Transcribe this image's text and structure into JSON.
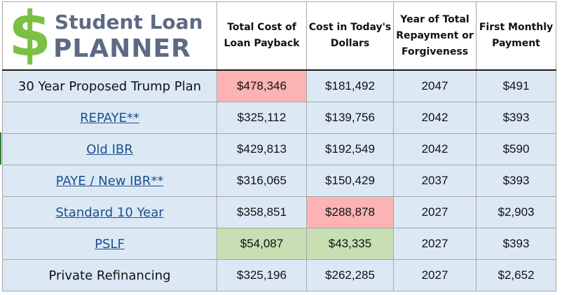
{
  "logo": {
    "symbol": "$",
    "line1": "Student Loan",
    "line2": "PLANNER",
    "colors": {
      "dollar": "#7bc043",
      "text": "#5e6a84"
    }
  },
  "headers": {
    "total_cost": "Total Cost of Loan Payback",
    "todays_dollars": "Cost in Today's Dollars",
    "year": "Year of Total Repayment or Forgiveness",
    "first_payment": "First Monthly Payment"
  },
  "rows": [
    {
      "plan": "30 Year Proposed Trump Plan",
      "link": false,
      "total_cost": "$478,346",
      "todays_dollars": "$181,492",
      "year": "2047",
      "first_payment": "$491"
    },
    {
      "plan": "REPAYE**",
      "link": true,
      "total_cost": "$325,112",
      "todays_dollars": "$139,756",
      "year": "2042",
      "first_payment": "$393"
    },
    {
      "plan": "Old IBR",
      "link": true,
      "total_cost": "$429,813",
      "todays_dollars": "$192,549",
      "year": "2042",
      "first_payment": "$590"
    },
    {
      "plan": "PAYE / New IBR**",
      "link": true,
      "total_cost": "$316,065",
      "todays_dollars": "$150,429",
      "year": "2037",
      "first_payment": "$393"
    },
    {
      "plan": "Standard 10 Year",
      "link": true,
      "total_cost": "$358,851",
      "todays_dollars": "$288,878",
      "year": "2027",
      "first_payment": "$2,903"
    },
    {
      "plan": "PSLF",
      "link": true,
      "total_cost": "$54,087",
      "todays_dollars": "$43,335",
      "year": "2027",
      "first_payment": "$393"
    },
    {
      "plan": "Private Refinancing",
      "link": false,
      "total_cost": "$325,196",
      "todays_dollars": "$262,285",
      "year": "2027",
      "first_payment": "$2,652"
    }
  ],
  "highlights": {
    "highest_total_cost": "#fbb3b3",
    "highest_todays_dollars": "#fbb3b3",
    "lowest_cost": "#c7dfb3",
    "row_fill": "#dce9f5"
  }
}
